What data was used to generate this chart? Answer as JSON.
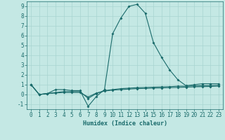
{
  "xlabel": "Humidex (Indice chaleur)",
  "bg_color": "#c4e8e4",
  "line_color": "#1a6b6b",
  "grid_color": "#a8d4d0",
  "x_values": [
    0,
    1,
    2,
    3,
    4,
    5,
    6,
    7,
    8,
    9,
    10,
    11,
    12,
    13,
    14,
    15,
    16,
    17,
    18,
    19,
    20,
    21,
    22,
    23
  ],
  "series1": [
    1.0,
    0.0,
    0.1,
    0.5,
    0.5,
    0.4,
    0.4,
    -1.2,
    -0.2,
    0.5,
    6.2,
    7.8,
    9.0,
    9.2,
    8.3,
    5.3,
    3.8,
    2.5,
    1.5,
    0.9,
    1.0,
    1.1,
    1.1,
    1.1
  ],
  "series2": [
    1.0,
    0.0,
    0.1,
    0.2,
    0.3,
    0.3,
    0.3,
    -0.4,
    0.1,
    0.4,
    0.5,
    0.6,
    0.65,
    0.7,
    0.72,
    0.75,
    0.78,
    0.8,
    0.85,
    0.85,
    0.88,
    0.9,
    0.92,
    0.95
  ],
  "series3": [
    1.0,
    0.0,
    0.1,
    0.15,
    0.2,
    0.2,
    0.2,
    -0.25,
    0.15,
    0.35,
    0.45,
    0.5,
    0.55,
    0.6,
    0.62,
    0.65,
    0.67,
    0.7,
    0.72,
    0.75,
    0.78,
    0.8,
    0.82,
    0.85
  ],
  "ylim": [
    -1.5,
    9.5
  ],
  "yticks": [
    -1,
    0,
    1,
    2,
    3,
    4,
    5,
    6,
    7,
    8,
    9
  ],
  "xticks": [
    0,
    1,
    2,
    3,
    4,
    5,
    6,
    7,
    8,
    9,
    10,
    11,
    12,
    13,
    14,
    15,
    16,
    17,
    18,
    19,
    20,
    21,
    22,
    23
  ],
  "xlim": [
    -0.5,
    23.5
  ],
  "marker_size": 2.0,
  "linewidth": 0.8,
  "tick_fontsize": 5.5,
  "xlabel_fontsize": 6.0
}
